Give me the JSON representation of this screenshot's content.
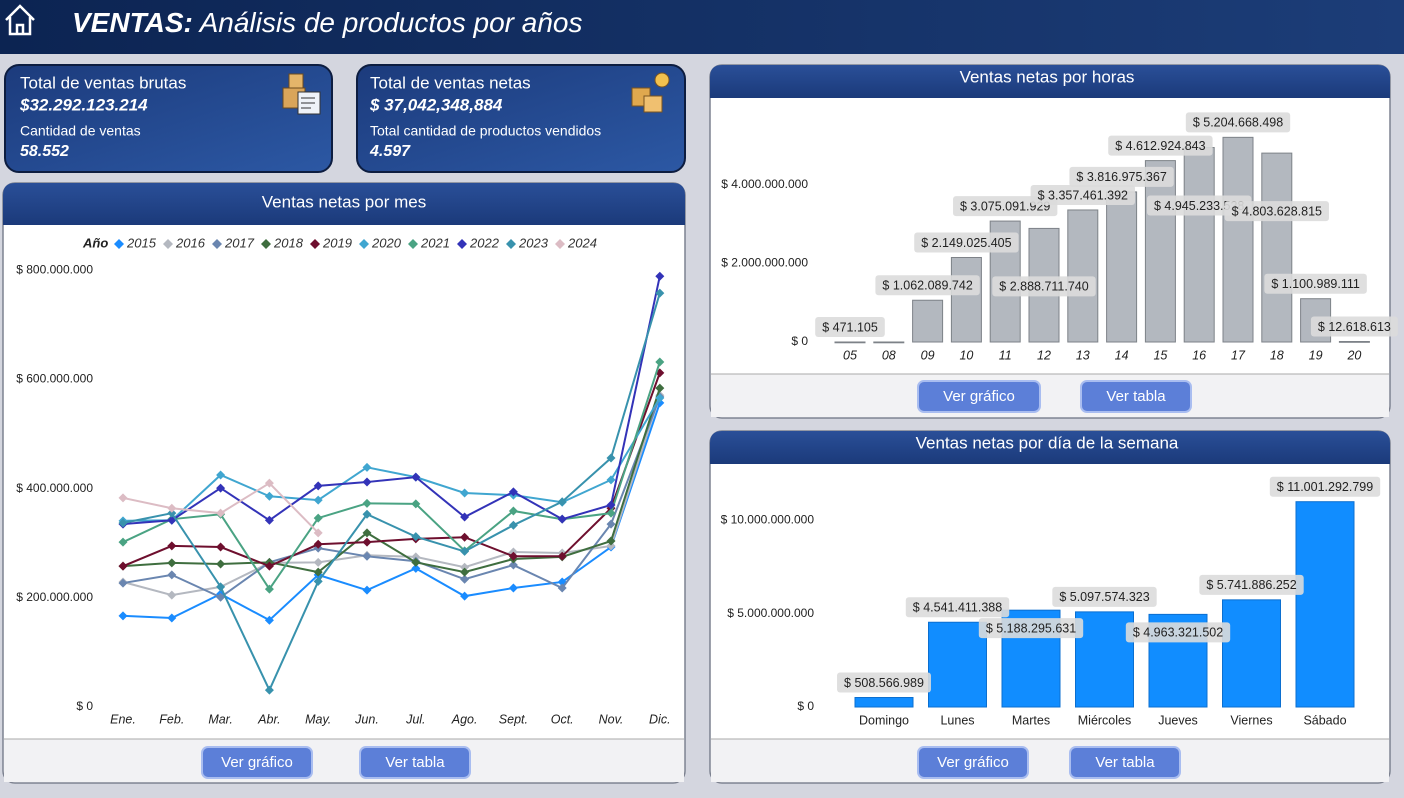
{
  "header": {
    "title_bold": "VENTAS:",
    "title_rest": "Análisis de productos por años"
  },
  "kpis": [
    {
      "label": "Total de ventas brutas",
      "value": "$32.292.123.214",
      "sub_label": "Cantidad de ventas",
      "sub_value": "58.552"
    },
    {
      "label": "Total de ventas netas",
      "value": "$ 37,042,348,884",
      "sub_label": "Total cantidad de productos vendidos",
      "sub_value": "4.597"
    }
  ],
  "panels": [
    {
      "buttons": [
        "Ver gráfico",
        "Ver tabla"
      ]
    },
    {
      "buttons": [
        "Ver gráfico",
        "Ver tabla"
      ]
    },
    {
      "buttons": [
        "Ver gráfico",
        "Ver tabla"
      ]
    }
  ],
  "chart_data": [
    {
      "type": "line",
      "title": "Ventas netas por mes",
      "legend_title": "Año",
      "categories": [
        "Ene.",
        "Feb.",
        "Mar.",
        "Abr.",
        "May.",
        "Jun.",
        "Jul.",
        "Ago.",
        "Sept.",
        "Oct.",
        "Nov.",
        "Dic."
      ],
      "ylim": [
        0,
        870000000
      ],
      "yticks": [
        {
          "value": 0,
          "label": "$ 0"
        },
        {
          "value": 200000000,
          "label": "$ 200.000.000"
        },
        {
          "value": 400000000,
          "label": "$ 400.000.000"
        },
        {
          "value": 600000000,
          "label": "$ 600.000.000"
        },
        {
          "value": 800000000,
          "label": "$ 800.000.000"
        }
      ],
      "series": [
        {
          "name": "2015",
          "color": "#1a8cff",
          "values": [
            167000000,
            163000000,
            207000000,
            159000000,
            242000000,
            214000000,
            254000000,
            203000000,
            218000000,
            229000000,
            293000000,
            557000000
          ]
        },
        {
          "name": "2016",
          "color": "#b4b8c0",
          "values": [
            229000000,
            205000000,
            220000000,
            264000000,
            265000000,
            278000000,
            275000000,
            256000000,
            284000000,
            282000000,
            295000000,
            571000000
          ]
        },
        {
          "name": "2017",
          "color": "#6a86b0",
          "values": [
            227000000,
            242000000,
            201000000,
            265000000,
            291000000,
            276000000,
            267000000,
            234000000,
            260000000,
            218000000,
            335000000,
            568000000
          ]
        },
        {
          "name": "2018",
          "color": "#3f6e3f",
          "values": [
            258000000,
            264000000,
            262000000,
            265000000,
            247000000,
            319000000,
            265000000,
            247000000,
            271000000,
            275000000,
            304000000,
            584000000
          ]
        },
        {
          "name": "2019",
          "color": "#6e0f2e",
          "values": [
            258000000,
            295000000,
            293000000,
            258000000,
            298000000,
            302000000,
            308000000,
            311000000,
            276000000,
            276000000,
            364000000,
            612000000
          ]
        },
        {
          "name": "2020",
          "color": "#40a6d0",
          "values": [
            341000000,
            342000000,
            425000000,
            386000000,
            379000000,
            439000000,
            421000000,
            392000000,
            388000000,
            375000000,
            416000000,
            566000000
          ]
        },
        {
          "name": "2021",
          "color": "#4aa383",
          "values": [
            302000000,
            344000000,
            353000000,
            216000000,
            346000000,
            373000000,
            372000000,
            286000000,
            359000000,
            344000000,
            355000000,
            632000000
          ]
        },
        {
          "name": "2022",
          "color": "#3333b8",
          "values": [
            335000000,
            342000000,
            401000000,
            342000000,
            405000000,
            412000000,
            421000000,
            348000000,
            394000000,
            344000000,
            370000000,
            789000000
          ]
        },
        {
          "name": "2023",
          "color": "#3892ad",
          "values": [
            337000000,
            355000000,
            220000000,
            31000000,
            230000000,
            353000000,
            312000000,
            285000000,
            333000000,
            376000000,
            456000000,
            758000000
          ]
        },
        {
          "name": "2024",
          "color": "#dcbcc4",
          "values": [
            383000000,
            364000000,
            355000000,
            410000000,
            319000000,
            null,
            null,
            null,
            null,
            null,
            null,
            null
          ]
        }
      ]
    },
    {
      "type": "bar",
      "title": "Ventas netas por horas",
      "color": "#b3b8bf",
      "categories": [
        "05",
        "08",
        "09",
        "10",
        "11",
        "12",
        "13",
        "14",
        "15",
        "16",
        "17",
        "18",
        "19",
        "20"
      ],
      "values": [
        471105,
        150000,
        1062089742,
        2149025405,
        3075091929,
        2888711740,
        3357461392,
        3816975367,
        4612924843,
        4945233528,
        5204668498,
        4803628815,
        1100989111,
        12618613
      ],
      "value_labels": [
        "$ 471.105",
        null,
        "$ 1.062.089.742",
        "$ 2.149.025.405",
        "$ 3.075.091.929",
        "$ 2.888.711.740",
        "$ 3.357.461.392",
        "$ 3.816.975.367",
        "$ 4.612.924.843",
        "$ 4.945.233.528",
        "$ 5.204.668.498",
        "$ 4.803.628.815",
        "$ 1.100.989.111",
        "$ 12.618.613"
      ],
      "ylim": [
        0,
        5900000000
      ],
      "yticks": [
        {
          "value": 0,
          "label": "$ 0"
        },
        {
          "value": 2000000000,
          "label": "$ 2.000.000.000"
        },
        {
          "value": 4000000000,
          "label": "$ 4.000.000.000"
        }
      ]
    },
    {
      "type": "bar",
      "title": "Ventas netas por día de la semana",
      "color": "#118dff",
      "categories": [
        "Domingo",
        "Lunes",
        "Martes",
        "Miércoles",
        "Jueves",
        "Viernes",
        "Sábado"
      ],
      "values": [
        508566989,
        4541411388,
        5188295631,
        5097574323,
        4963321502,
        5741886252,
        11001292799
      ],
      "value_labels": [
        "$ 508.566.989",
        "$ 4.541.411.388",
        "$ 5.188.295.631",
        "$ 5.097.574.323",
        "$ 4.963.321.502",
        "$ 5.741.886.252",
        "$ 11.001.292.799"
      ],
      "ylim": [
        0,
        12700000000
      ],
      "yticks": [
        {
          "value": 0,
          "label": "$ 0"
        },
        {
          "value": 5000000000,
          "label": "$ 5.000.000.000"
        },
        {
          "value": 10000000000,
          "label": "$ 10.000.000.000"
        }
      ]
    }
  ]
}
